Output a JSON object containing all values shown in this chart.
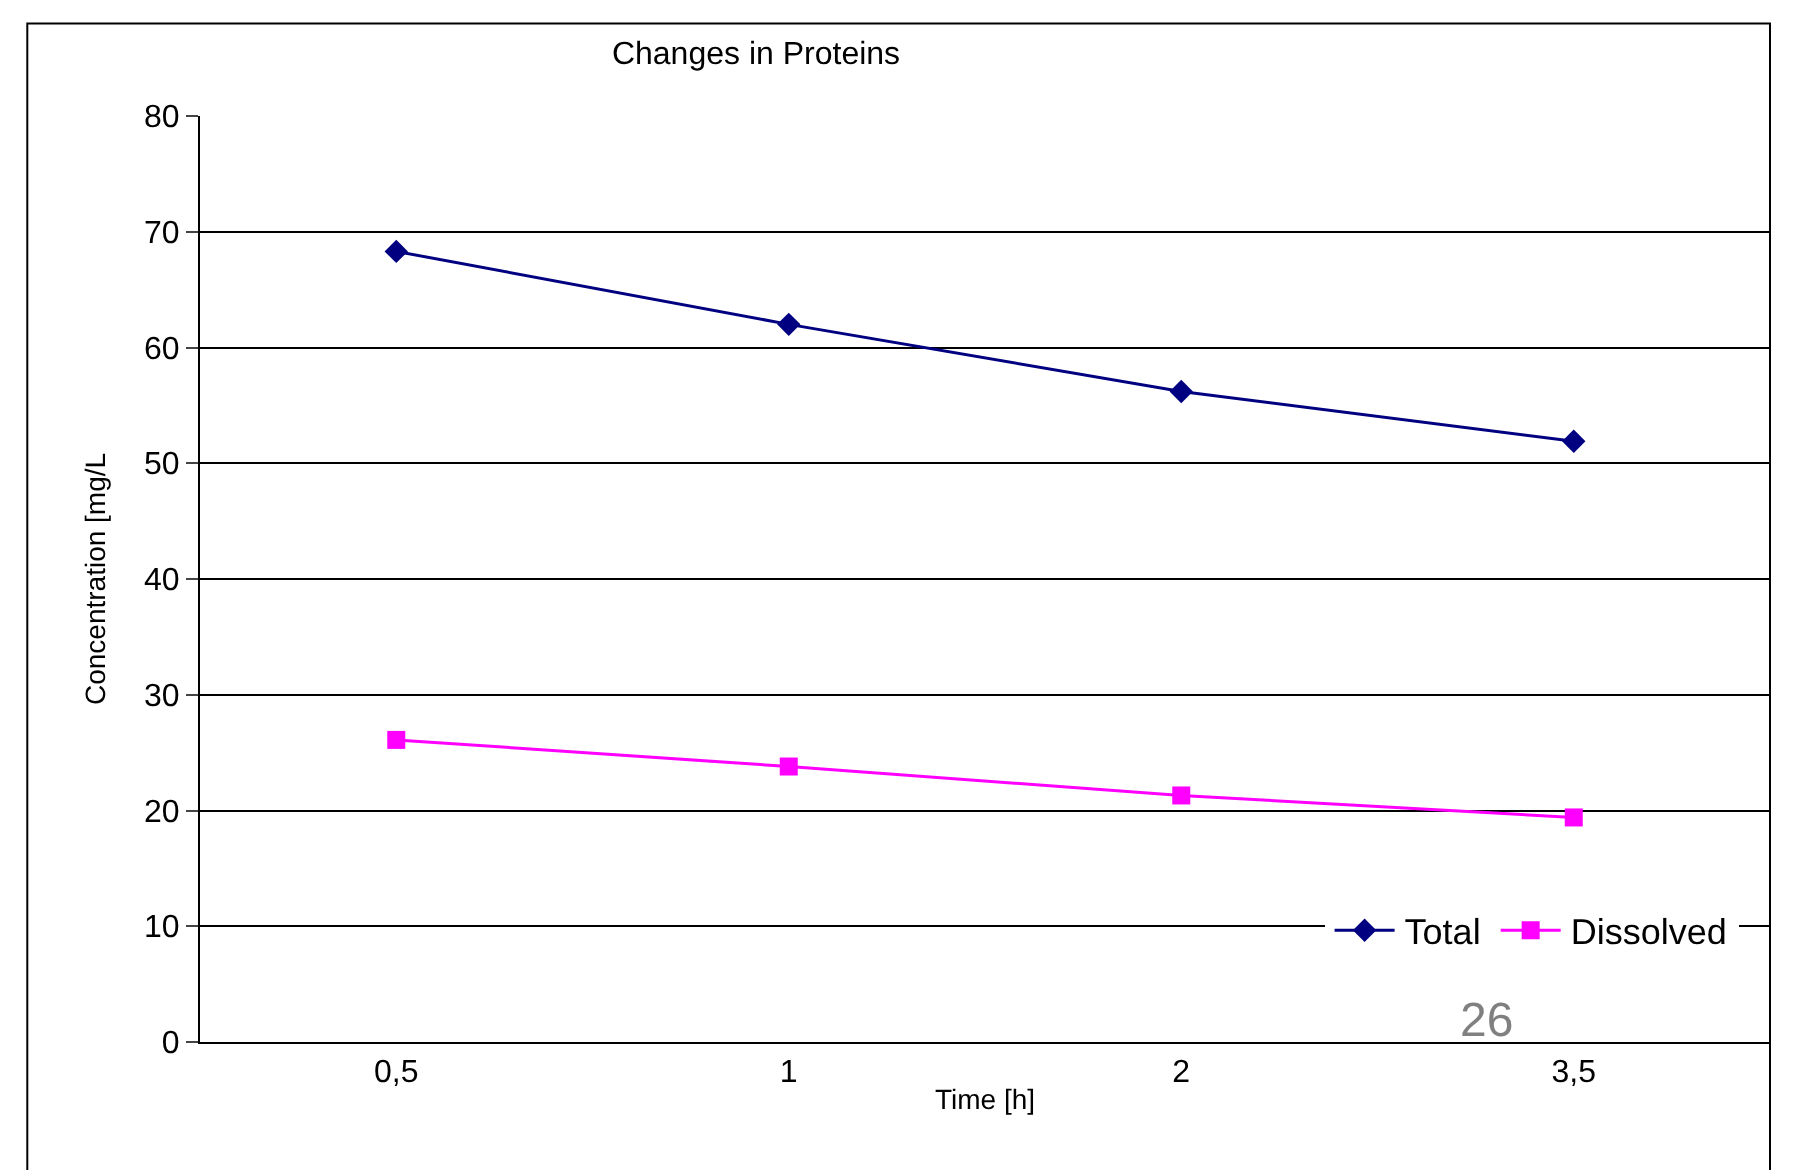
{
  "chart_data": {
    "type": "line",
    "title": "Changes in Proteins",
    "xlabel": "Time [h]",
    "ylabel": "Concentration [mg/L",
    "categories": [
      "0,5",
      "1",
      "2",
      "3,5"
    ],
    "series": [
      {
        "name": "Total",
        "color": "#000080",
        "marker": "diamond",
        "values": [
          68.3,
          62.0,
          56.2,
          51.9
        ]
      },
      {
        "name": "Dissolved",
        "color": "#ff00ff",
        "marker": "square",
        "values": [
          26.1,
          23.8,
          21.3,
          19.4
        ]
      }
    ],
    "ylim": [
      0,
      80
    ],
    "yticks": [
      0,
      10,
      20,
      30,
      40,
      50,
      60,
      70,
      80
    ],
    "grid": "y",
    "legend": "bottom right",
    "line_style": "solid",
    "annotations": [
      "26"
    ]
  }
}
